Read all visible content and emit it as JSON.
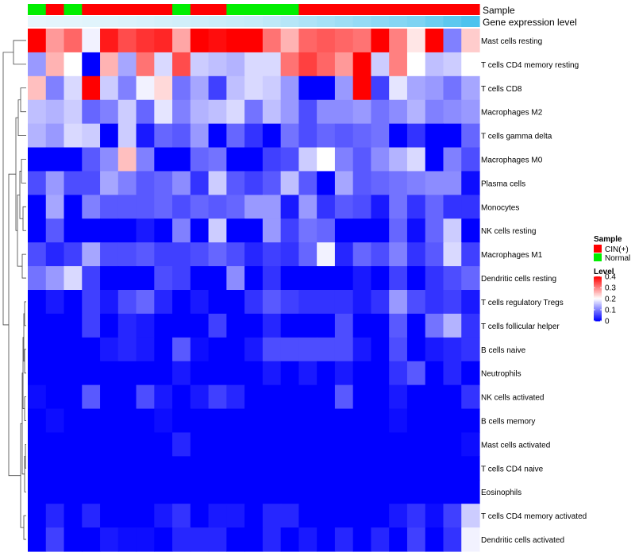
{
  "chart_data": {
    "type": "heatmap",
    "annotation_labels": {
      "sample": "Sample",
      "expression": "Gene expression level"
    },
    "sample_groups": [
      "Normal",
      "CIN(+)",
      "Normal",
      "CIN(+)",
      "CIN(+)",
      "CIN(+)",
      "CIN(+)",
      "CIN(+)",
      "Normal",
      "CIN(+)",
      "CIN(+)",
      "Normal",
      "Normal",
      "Normal",
      "Normal",
      "CIN(+)",
      "CIN(+)",
      "CIN(+)",
      "CIN(+)",
      "CIN(+)",
      "CIN(+)",
      "CIN(+)",
      "CIN(+)",
      "CIN(+)",
      "CIN(+)"
    ],
    "expression_levels": [
      0.05,
      0.06,
      0.07,
      0.08,
      0.1,
      0.12,
      0.14,
      0.16,
      0.18,
      0.2,
      0.22,
      0.24,
      0.26,
      0.3,
      0.35,
      0.4,
      0.45,
      0.5,
      0.55,
      0.6,
      0.65,
      0.7,
      0.8,
      0.9,
      1.0
    ],
    "rows": [
      "Mast cells resting",
      "T cells CD4 memory resting",
      "T cells CD8",
      "Macrophages M2",
      "T cells gamma delta",
      "Macrophages M0",
      "Plasma cells",
      "Monocytes",
      "NK cells resting",
      "Macrophages M1",
      "Dendritic cells resting",
      "T cells regulatory  Tregs",
      "T cells follicular helper",
      "B cells naive",
      "Neutrophils",
      "NK cells activated",
      "B cells memory",
      "Mast cells activated",
      "T cells CD4 naive",
      "Eosinophils",
      "T cells CD4 memory activated",
      "Dendritic cells activated"
    ],
    "values": [
      [
        0.4,
        0.28,
        0.32,
        0.19,
        0.38,
        0.34,
        0.36,
        0.37,
        0.27,
        0.4,
        0.39,
        0.4,
        0.4,
        0.31,
        0.26,
        0.32,
        0.33,
        0.32,
        0.31,
        0.4,
        0.3,
        0.22,
        0.4,
        0.1,
        0.24
      ],
      [
        0.12,
        0.26,
        0.2,
        0.0,
        0.26,
        0.13,
        0.31,
        0.17,
        0.34,
        0.16,
        0.15,
        0.14,
        0.17,
        0.17,
        0.31,
        0.35,
        0.32,
        0.28,
        0.4,
        0.16,
        0.3,
        0.2,
        0.15,
        0.16,
        0.2
      ],
      [
        0.25,
        0.1,
        0.17,
        0.4,
        0.16,
        0.1,
        0.19,
        0.23,
        0.09,
        0.13,
        0.05,
        0.15,
        0.17,
        0.16,
        0.12,
        0.0,
        0.0,
        0.12,
        0.4,
        0.05,
        0.18,
        0.13,
        0.12,
        0.09,
        0.13
      ],
      [
        0.15,
        0.14,
        0.16,
        0.08,
        0.1,
        0.16,
        0.08,
        0.18,
        0.1,
        0.14,
        0.15,
        0.17,
        0.09,
        0.15,
        0.12,
        0.06,
        0.11,
        0.11,
        0.12,
        0.09,
        0.11,
        0.14,
        0.1,
        0.11,
        0.12
      ],
      [
        0.14,
        0.12,
        0.17,
        0.16,
        0.0,
        0.16,
        0.02,
        0.08,
        0.07,
        0.12,
        0.0,
        0.08,
        0.04,
        0.0,
        0.09,
        0.06,
        0.08,
        0.07,
        0.08,
        0.09,
        0.0,
        0.04,
        0.0,
        0.0,
        0.08
      ],
      [
        0.0,
        0.0,
        0.0,
        0.07,
        0.11,
        0.25,
        0.1,
        0.0,
        0.0,
        0.08,
        0.09,
        0.0,
        0.0,
        0.05,
        0.06,
        0.16,
        0.2,
        0.1,
        0.07,
        0.11,
        0.14,
        0.17,
        0.0,
        0.1,
        0.06
      ],
      [
        0.06,
        0.12,
        0.06,
        0.06,
        0.13,
        0.1,
        0.07,
        0.08,
        0.11,
        0.04,
        0.16,
        0.07,
        0.05,
        0.07,
        0.15,
        0.07,
        0.0,
        0.13,
        0.07,
        0.08,
        0.09,
        0.1,
        0.11,
        0.11,
        0.01
      ],
      [
        0.0,
        0.13,
        0.0,
        0.1,
        0.07,
        0.07,
        0.07,
        0.08,
        0.06,
        0.08,
        0.07,
        0.08,
        0.12,
        0.12,
        0.02,
        0.12,
        0.04,
        0.07,
        0.06,
        0.02,
        0.09,
        0.04,
        0.08,
        0.04,
        0.04
      ],
      [
        0.0,
        0.07,
        0.0,
        0.0,
        0.0,
        0.0,
        0.02,
        0.0,
        0.1,
        0.0,
        0.16,
        0.0,
        0.0,
        0.12,
        0.05,
        0.09,
        0.08,
        0.0,
        0.0,
        0.0,
        0.08,
        0.01,
        0.08,
        0.16,
        0.0
      ],
      [
        0.06,
        0.03,
        0.05,
        0.13,
        0.06,
        0.06,
        0.07,
        0.05,
        0.05,
        0.06,
        0.08,
        0.06,
        0.03,
        0.05,
        0.04,
        0.08,
        0.19,
        0.03,
        0.08,
        0.06,
        0.1,
        0.04,
        0.07,
        0.17,
        0.05
      ],
      [
        0.09,
        0.12,
        0.17,
        0.05,
        0.0,
        0.0,
        0.0,
        0.06,
        0.05,
        0.0,
        0.0,
        0.11,
        0.0,
        0.04,
        0.0,
        0.0,
        0.0,
        0.0,
        0.02,
        0.0,
        0.05,
        0.0,
        0.04,
        0.06,
        0.08
      ],
      [
        0.0,
        0.02,
        0.0,
        0.05,
        0.02,
        0.06,
        0.08,
        0.03,
        0.0,
        0.02,
        0.0,
        0.0,
        0.04,
        0.07,
        0.05,
        0.04,
        0.04,
        0.04,
        0.02,
        0.04,
        0.12,
        0.06,
        0.04,
        0.05,
        0.02
      ],
      [
        0.0,
        0.0,
        0.0,
        0.05,
        0.0,
        0.03,
        0.02,
        0.0,
        0.0,
        0.0,
        0.05,
        0.0,
        0.0,
        0.03,
        0.0,
        0.0,
        0.0,
        0.06,
        0.0,
        0.0,
        0.07,
        0.0,
        0.09,
        0.14,
        0.04
      ],
      [
        0.0,
        0.0,
        0.0,
        0.0,
        0.02,
        0.03,
        0.02,
        0.0,
        0.07,
        0.01,
        0.0,
        0.0,
        0.02,
        0.06,
        0.06,
        0.06,
        0.06,
        0.06,
        0.02,
        0.0,
        0.06,
        0.0,
        0.02,
        0.03,
        0.04
      ],
      [
        0.0,
        0.0,
        0.0,
        0.0,
        0.0,
        0.0,
        0.0,
        0.0,
        0.02,
        0.0,
        0.0,
        0.0,
        0.0,
        0.02,
        0.0,
        0.02,
        0.0,
        0.02,
        0.0,
        0.0,
        0.04,
        0.07,
        0.0,
        0.03,
        0.0
      ],
      [
        0.01,
        0.0,
        0.0,
        0.07,
        0.0,
        0.0,
        0.06,
        0.02,
        0.0,
        0.02,
        0.05,
        0.03,
        0.0,
        0.0,
        0.0,
        0.0,
        0.0,
        0.07,
        0.0,
        0.0,
        0.02,
        0.0,
        0.0,
        0.0,
        0.04
      ],
      [
        0.0,
        0.01,
        0.0,
        0.0,
        0.0,
        0.0,
        0.0,
        0.01,
        0.0,
        0.0,
        0.0,
        0.0,
        0.0,
        0.0,
        0.0,
        0.0,
        0.0,
        0.0,
        0.0,
        0.0,
        0.01,
        0.0,
        0.0,
        0.0,
        0.0
      ],
      [
        0.0,
        0.0,
        0.0,
        0.0,
        0.0,
        0.0,
        0.0,
        0.0,
        0.03,
        0.0,
        0.0,
        0.0,
        0.0,
        0.0,
        0.0,
        0.0,
        0.0,
        0.0,
        0.0,
        0.0,
        0.0,
        0.0,
        0.0,
        0.0,
        0.01
      ],
      [
        0.0,
        0.0,
        0.0,
        0.0,
        0.0,
        0.0,
        0.0,
        0.0,
        0.0,
        0.0,
        0.0,
        0.0,
        0.0,
        0.0,
        0.0,
        0.0,
        0.0,
        0.0,
        0.0,
        0.0,
        0.0,
        0.0,
        0.0,
        0.0,
        0.0
      ],
      [
        0.0,
        0.0,
        0.0,
        0.0,
        0.0,
        0.0,
        0.0,
        0.0,
        0.0,
        0.0,
        0.0,
        0.0,
        0.0,
        0.0,
        0.0,
        0.0,
        0.0,
        0.0,
        0.0,
        0.0,
        0.0,
        0.0,
        0.0,
        0.0,
        0.0
      ],
      [
        0.0,
        0.03,
        0.0,
        0.03,
        0.0,
        0.0,
        0.0,
        0.02,
        0.04,
        0.0,
        0.02,
        0.02,
        0.0,
        0.03,
        0.03,
        0.0,
        0.0,
        0.0,
        0.0,
        0.0,
        0.02,
        0.04,
        0.01,
        0.05,
        0.16
      ],
      [
        0.0,
        0.05,
        0.0,
        0.0,
        0.02,
        0.01,
        0.01,
        0.0,
        0.03,
        0.03,
        0.03,
        0.0,
        0.0,
        0.03,
        0.0,
        0.02,
        0.0,
        0.03,
        0.0,
        0.03,
        0.0,
        0.05,
        0.0,
        0.04,
        0.19
      ]
    ],
    "legend": {
      "sample_title": "Sample",
      "sample_entries": [
        {
          "label": "CIN(+)",
          "color": "#FF0000"
        },
        {
          "label": "Normal",
          "color": "#00EE00"
        }
      ],
      "level_title": "Level",
      "level_ticks": [
        "0.4",
        "0.3",
        "0.2",
        "0.1",
        "0"
      ],
      "level_tick_values": [
        0.4,
        0.3,
        0.2,
        0.1,
        0
      ],
      "placement": "right"
    },
    "color_scale": {
      "low": "#0000FF",
      "mid": "#FFFFFF",
      "high": "#FF0000",
      "min": 0,
      "max": 0.4
    },
    "annotation_colors": {
      "expression_low": "#E6F6FC",
      "expression_high": "#4DC3EE"
    }
  }
}
